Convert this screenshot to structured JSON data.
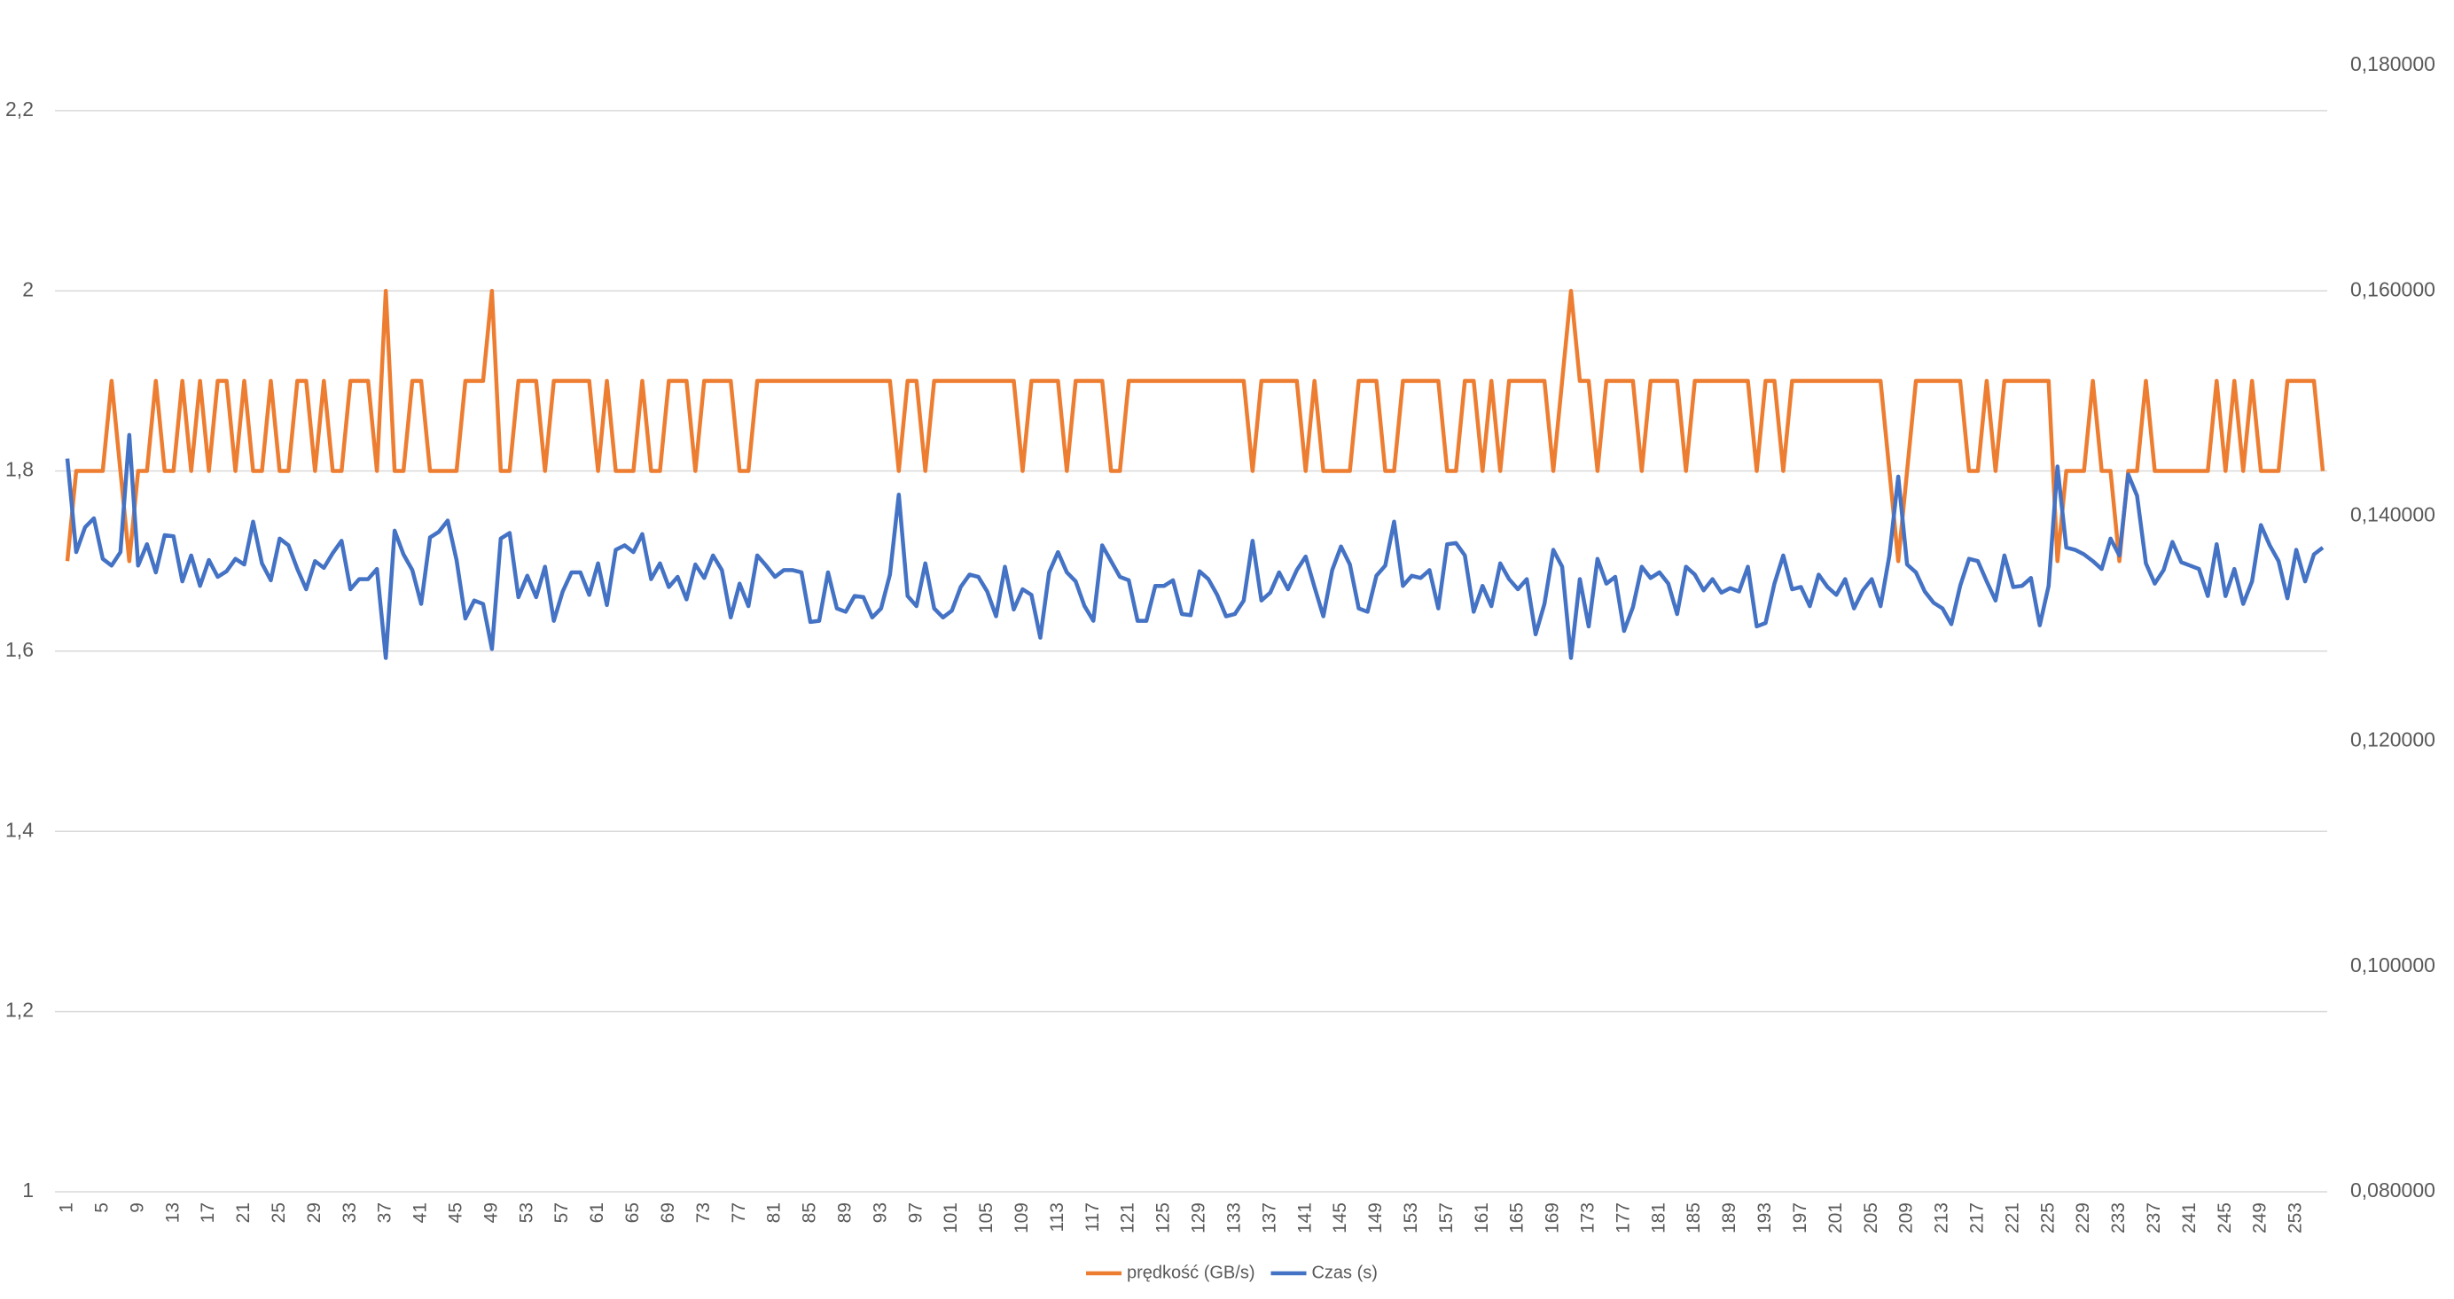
{
  "chart_data": {
    "type": "line",
    "categories": [
      1,
      null,
      null,
      null,
      5,
      null,
      null,
      null,
      9,
      null,
      null,
      null,
      13,
      null,
      null,
      null,
      17,
      null,
      null,
      null,
      21,
      null,
      null,
      null,
      25,
      null,
      null,
      null,
      29,
      null,
      null,
      null,
      33,
      null,
      null,
      null,
      37,
      null,
      null,
      null,
      41,
      null,
      null,
      null,
      45,
      null,
      null,
      null,
      49,
      null,
      null,
      null,
      53,
      null,
      null,
      null,
      57,
      null,
      null,
      null,
      61,
      null,
      null,
      null,
      65,
      null,
      null,
      null,
      69,
      null,
      null,
      null,
      73,
      null,
      null,
      null,
      77,
      null,
      null,
      null,
      81,
      null,
      null,
      null,
      85,
      null,
      null,
      null,
      89,
      null,
      null,
      null,
      93,
      null,
      null,
      null,
      97,
      null,
      null,
      null,
      101,
      null,
      null,
      null,
      105,
      null,
      null,
      null,
      109,
      null,
      null,
      null,
      113,
      null,
      null,
      null,
      117,
      null,
      null,
      null,
      121,
      null,
      null,
      null,
      125,
      null,
      null,
      null,
      129,
      null,
      null,
      null,
      133,
      null,
      null,
      null,
      137,
      null,
      null,
      null,
      141,
      null,
      null,
      null,
      145,
      null,
      null,
      null,
      149,
      null,
      null,
      null,
      153,
      null,
      null,
      null,
      157,
      null,
      null,
      null,
      161,
      null,
      null,
      null,
      165,
      null,
      null,
      null,
      169,
      null,
      null,
      null,
      173,
      null,
      null,
      null,
      177,
      null,
      null,
      null,
      181,
      null,
      null,
      null,
      185,
      null,
      null,
      null,
      189,
      null,
      null,
      null,
      193,
      null,
      null,
      null,
      197,
      null,
      null,
      null,
      201,
      null,
      null,
      null,
      205,
      null,
      null,
      null,
      209,
      null,
      null,
      null,
      213,
      null,
      null,
      null,
      217,
      null,
      null,
      null,
      221,
      null,
      null,
      null,
      225,
      null,
      null,
      null,
      229,
      null,
      null,
      null,
      233,
      null,
      null,
      null,
      237,
      null,
      null,
      null,
      241,
      null,
      null,
      null,
      245,
      null,
      null,
      null,
      249,
      null,
      null,
      null,
      253,
      null,
      null,
      null
    ],
    "series": [
      {
        "name": "prędkość (GB/s)",
        "color": "#ED7D31",
        "values": [
          1.7,
          1.8,
          1.8,
          1.8,
          1.8,
          1.9,
          1.8,
          1.7,
          1.8,
          1.8,
          1.9,
          1.8,
          1.8,
          1.9,
          1.8,
          1.9,
          1.8,
          1.9,
          1.9,
          1.8,
          1.9,
          1.8,
          1.8,
          1.9,
          1.8,
          1.8,
          1.9,
          1.9,
          1.8,
          1.9,
          1.8,
          1.8,
          1.9,
          1.9,
          1.9,
          1.8,
          2.0,
          1.8,
          1.8,
          1.9,
          1.9,
          1.8,
          1.8,
          1.8,
          1.8,
          1.9,
          1.9,
          1.9,
          2.0,
          1.8,
          1.8,
          1.9,
          1.9,
          1.9,
          1.8,
          1.9,
          1.9,
          1.9,
          1.9,
          1.9,
          1.8,
          1.9,
          1.8,
          1.8,
          1.8,
          1.9,
          1.8,
          1.8,
          1.9,
          1.9,
          1.9,
          1.8,
          1.9,
          1.9,
          1.9,
          1.9,
          1.8,
          1.8,
          1.9,
          1.9,
          1.9,
          1.9,
          1.9,
          1.9,
          1.9,
          1.9,
          1.9,
          1.9,
          1.9,
          1.9,
          1.9,
          1.9,
          1.9,
          1.9,
          1.8,
          1.9,
          1.9,
          1.8,
          1.9,
          1.9,
          1.9,
          1.9,
          1.9,
          1.9,
          1.9,
          1.9,
          1.9,
          1.9,
          1.8,
          1.9,
          1.9,
          1.9,
          1.9,
          1.8,
          1.9,
          1.9,
          1.9,
          1.9,
          1.8,
          1.8,
          1.9,
          1.9,
          1.9,
          1.9,
          1.9,
          1.9,
          1.9,
          1.9,
          1.9,
          1.9,
          1.9,
          1.9,
          1.9,
          1.9,
          1.8,
          1.9,
          1.9,
          1.9,
          1.9,
          1.9,
          1.8,
          1.9,
          1.8,
          1.8,
          1.8,
          1.8,
          1.9,
          1.9,
          1.9,
          1.8,
          1.8,
          1.9,
          1.9,
          1.9,
          1.9,
          1.9,
          1.8,
          1.8,
          1.9,
          1.9,
          1.8,
          1.9,
          1.8,
          1.9,
          1.9,
          1.9,
          1.9,
          1.9,
          1.8,
          1.9,
          2.0,
          1.9,
          1.9,
          1.8,
          1.9,
          1.9,
          1.9,
          1.9,
          1.8,
          1.9,
          1.9,
          1.9,
          1.9,
          1.8,
          1.9,
          1.9,
          1.9,
          1.9,
          1.9,
          1.9,
          1.9,
          1.8,
          1.9,
          1.9,
          1.8,
          1.9,
          1.9,
          1.9,
          1.9,
          1.9,
          1.9,
          1.9,
          1.9,
          1.9,
          1.9,
          1.9,
          1.8,
          1.7,
          1.8,
          1.9,
          1.9,
          1.9,
          1.9,
          1.9,
          1.9,
          1.8,
          1.8,
          1.9,
          1.8,
          1.9,
          1.9,
          1.9,
          1.9,
          1.9,
          1.9,
          1.7,
          1.8,
          1.8,
          1.8,
          1.9,
          1.8,
          1.8,
          1.7,
          1.8,
          1.8,
          1.9,
          1.8,
          1.8,
          1.8,
          1.8,
          1.8,
          1.8,
          1.8,
          1.9,
          1.8,
          1.9,
          1.8,
          1.9,
          1.8,
          1.8,
          1.8,
          1.9,
          1.9,
          1.9,
          1.9,
          1.8
        ]
      },
      {
        "name": "Czas (s)",
        "color": "#4472C4",
        "axis": "y2",
        "values": [
          0.1451,
          0.1368,
          0.139,
          0.1398,
          0.1362,
          0.1356,
          0.1368,
          0.1472,
          0.1356,
          0.1375,
          0.135,
          0.1383,
          0.1382,
          0.1342,
          0.1365,
          0.1338,
          0.1361,
          0.1346,
          0.1351,
          0.1362,
          0.1357,
          0.1395,
          0.1358,
          0.1343,
          0.138,
          0.1374,
          0.1353,
          0.1335,
          0.136,
          0.1354,
          0.1367,
          0.1378,
          0.1335,
          0.1344,
          0.1344,
          0.1353,
          0.1274,
          0.1387,
          0.1366,
          0.1352,
          0.1322,
          0.1381,
          0.1386,
          0.1396,
          0.1361,
          0.1309,
          0.1325,
          0.1322,
          0.1282,
          0.138,
          0.1385,
          0.1328,
          0.1347,
          0.1328,
          0.1355,
          0.1307,
          0.1333,
          0.135,
          0.135,
          0.133,
          0.1358,
          0.1321,
          0.137,
          0.1374,
          0.1368,
          0.1384,
          0.1344,
          0.1358,
          0.1337,
          0.1346,
          0.1326,
          0.1357,
          0.1345,
          0.1365,
          0.1352,
          0.131,
          0.134,
          0.132,
          0.1365,
          0.1356,
          0.1346,
          0.1352,
          0.1352,
          0.135,
          0.1306,
          0.1307,
          0.135,
          0.1318,
          0.1315,
          0.1329,
          0.1328,
          0.131,
          0.1318,
          0.1348,
          0.1419,
          0.1329,
          0.132,
          0.1358,
          0.1318,
          0.131,
          0.1316,
          0.1337,
          0.1348,
          0.1346,
          0.1333,
          0.1311,
          0.1355,
          0.1317,
          0.1335,
          0.133,
          0.1292,
          0.135,
          0.1368,
          0.135,
          0.1342,
          0.132,
          0.1307,
          0.1374,
          0.136,
          0.1346,
          0.1343,
          0.1307,
          0.1307,
          0.1338,
          0.1338,
          0.1343,
          0.1313,
          0.1312,
          0.1351,
          0.1344,
          0.133,
          0.1311,
          0.1313,
          0.1325,
          0.1378,
          0.1325,
          0.1332,
          0.135,
          0.1335,
          0.1352,
          0.1364,
          0.1337,
          0.1311,
          0.1352,
          0.1373,
          0.1357,
          0.1318,
          0.1315,
          0.1347,
          0.1356,
          0.1395,
          0.1338,
          0.1347,
          0.1345,
          0.1352,
          0.1318,
          0.1375,
          0.1376,
          0.1365,
          0.1315,
          0.1338,
          0.132,
          0.1358,
          0.1344,
          0.1335,
          0.1344,
          0.1295,
          0.1322,
          0.137,
          0.1355,
          0.1274,
          0.1344,
          0.1302,
          0.1362,
          0.134,
          0.1346,
          0.1298,
          0.1319,
          0.1355,
          0.1345,
          0.135,
          0.134,
          0.1313,
          0.1355,
          0.1348,
          0.1334,
          0.1344,
          0.1332,
          0.1336,
          0.1333,
          0.1355,
          0.1302,
          0.1305,
          0.134,
          0.1365,
          0.1335,
          0.1337,
          0.132,
          0.1348,
          0.1337,
          0.133,
          0.1344,
          0.1318,
          0.1334,
          0.1344,
          0.132,
          0.1365,
          0.1435,
          0.1357,
          0.135,
          0.1333,
          0.1323,
          0.1318,
          0.1304,
          0.1338,
          0.1362,
          0.136,
          0.1342,
          0.1325,
          0.1365,
          0.1337,
          0.1338,
          0.1345,
          0.1303,
          0.1338,
          0.1444,
          0.1372,
          0.137,
          0.1366,
          0.136,
          0.1353,
          0.138,
          0.1365,
          0.1437,
          0.1418,
          0.1358,
          0.134,
          0.1352,
          0.1377,
          0.1359,
          0.1356,
          0.1353,
          0.1329,
          0.1375,
          0.1329,
          0.1353,
          0.1322,
          0.1342,
          0.1392,
          0.1374,
          0.136,
          0.1327,
          0.137,
          0.1342,
          0.1366,
          0.1372
        ]
      }
    ],
    "ylim": [
      1,
      2.25
    ],
    "yticks": [
      1,
      {
        "value": 1.2,
        "label": "1,2"
      },
      {
        "value": 1.4,
        "label": "1,4"
      },
      {
        "value": 1.6,
        "label": "1,6"
      },
      {
        "value": 1.8,
        "label": "1,8"
      },
      2,
      {
        "value": 2.2,
        "label": "2,2"
      }
    ],
    "y2lim": [
      0.08,
      0.18
    ],
    "y2ticks": [
      {
        "value": 0.08,
        "label": "0,080000"
      },
      {
        "value": 0.1,
        "label": "0,100000"
      },
      {
        "value": 0.12,
        "label": "0,120000"
      },
      {
        "value": 0.14,
        "label": "0,140000"
      },
      {
        "value": 0.16,
        "label": "0,160000"
      },
      {
        "value": 0.18,
        "label": "0,180000"
      }
    ],
    "grid": true,
    "legend": "bottom"
  }
}
